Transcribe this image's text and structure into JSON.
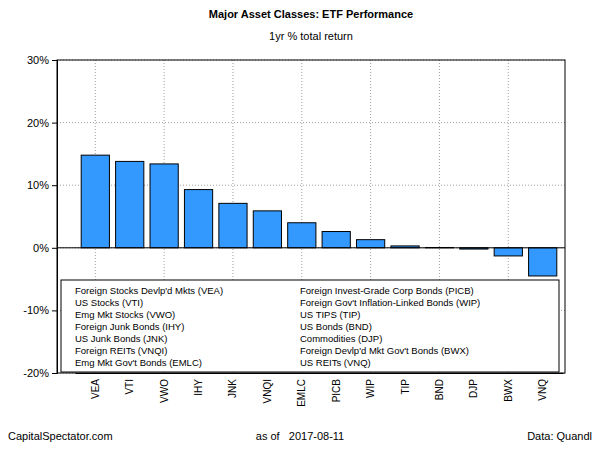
{
  "chart_data": {
    "type": "bar",
    "title": "Major Asset Classes: ETF Performance",
    "subtitle": "1yr % total return",
    "categories": [
      "VEA",
      "VTI",
      "VWO",
      "IHY",
      "JNK",
      "VNQI",
      "EMLC",
      "PICB",
      "WIP",
      "TIP",
      "BND",
      "DJP",
      "BWX",
      "VNQ"
    ],
    "values": [
      14.8,
      13.8,
      13.4,
      9.3,
      7.1,
      5.9,
      4.0,
      2.6,
      1.3,
      0.3,
      0.05,
      -0.2,
      -1.3,
      -4.5
    ],
    "color": "#3399ff",
    "ylim": [
      -20,
      30
    ],
    "yticks": [
      {
        "value": -20,
        "label": "-20%"
      },
      {
        "value": -10,
        "label": "-10%"
      },
      {
        "value": 0,
        "label": "0%"
      },
      {
        "value": 10,
        "label": "10%"
      },
      {
        "value": 20,
        "label": "20%"
      },
      {
        "value": 30,
        "label": "30%"
      }
    ],
    "grid": true,
    "legend": "bottom",
    "category_labels": [
      "Foreign Stocks Devlp'd Mkts (VEA)",
      "US Stocks (VTI)",
      "Emg Mkt Stocks (VWO)",
      "Foreign Junk Bonds (IHY)",
      "US Junk Bonds (JNK)",
      "Foreign REITs (VNQI)",
      "Emg Mkt Gov't Bonds (EMLC)",
      "Foreign Invest-Grade Corp Bonds (PICB)",
      "Foreign Gov't Inflation-Linked Bonds (WIP)",
      "US TIPS (TIP)",
      "US Bonds (BND)",
      "Commodities (DJP)",
      "Foreign Devlp'd Mkt Gov't Bonds (BWX)",
      "US REITs (VNQ)"
    ],
    "footer": [
      "CapitalSpectator.com",
      "as of   2017-08-11",
      "Data: Quandl"
    ]
  }
}
